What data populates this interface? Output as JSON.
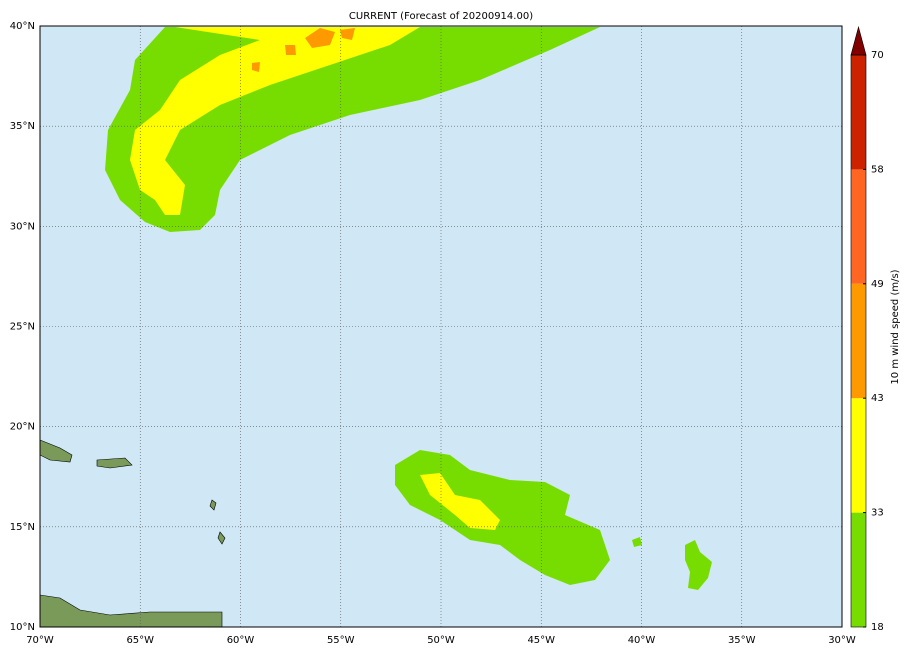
{
  "title": "CURRENT (Forecast of 20200914.00)",
  "lon_ticks": [
    "70°W",
    "65°W",
    "60°W",
    "55°W",
    "50°W",
    "45°W",
    "40°W",
    "35°W",
    "30°W"
  ],
  "lat_ticks": [
    "40°N",
    "35°N",
    "30°N",
    "25°N",
    "20°N",
    "15°N",
    "10°N"
  ],
  "colorbar": {
    "label": "10 m wind speed (m/s)",
    "ticks": [
      18,
      33,
      43,
      49,
      58,
      70
    ],
    "colors": [
      "#77dd00",
      "#ffff00",
      "#ff9900",
      "#ff6622",
      "#cc2200"
    ],
    "extend_color": "#800000"
  }
}
